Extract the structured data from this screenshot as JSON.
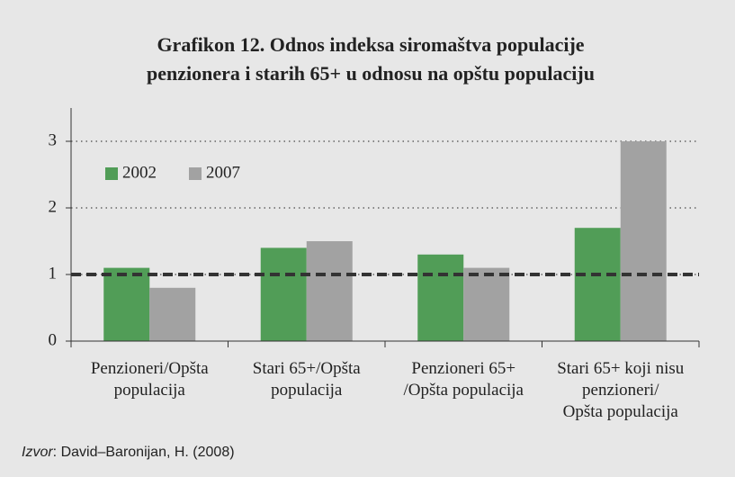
{
  "chart_data": {
    "type": "bar",
    "title": [
      "Grafikon 12. Odnos indeksa siromaštva populacije",
      "penzionera i starih 65+ u odnosu na opštu populaciju"
    ],
    "categories": [
      "Penzioneri/Opšta\npopulacija",
      "Stari 65+/Opšta\npopulacija",
      "Penzioneri 65+\n/Opšta populacija",
      "Stari 65+ koji nisu\npenzioneri/\nOpšta populacija"
    ],
    "series": [
      {
        "name": "2002",
        "color": "#519d57",
        "values": [
          1.1,
          1.4,
          1.3,
          1.7
        ]
      },
      {
        "name": "2007",
        "color": "#a2a2a2",
        "values": [
          0.8,
          1.5,
          1.1,
          3.0
        ]
      }
    ],
    "ylim": [
      0,
      3.5
    ],
    "yticks": [
      0,
      1,
      2,
      3
    ],
    "grid": true,
    "reference_line": 1,
    "legend": "upper-left",
    "source": {
      "label": "Izvor",
      "text": ": David–Baronijan, H. (2008)"
    }
  }
}
